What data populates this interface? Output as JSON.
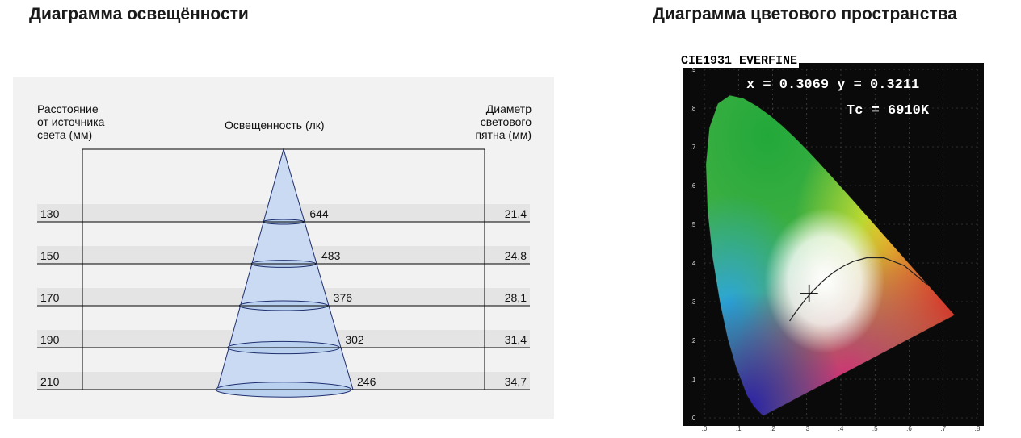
{
  "titles": {
    "left": "Диаграмма освещённости",
    "right": "Диаграмма цветового пространства"
  },
  "illuminance_headers": {
    "distance": [
      "Расстояние",
      "от источника",
      "света (мм)"
    ],
    "illuminance": "Освещенность (лк)",
    "diameter": [
      "Диаметр",
      "светового",
      "пятна (мм)"
    ]
  },
  "chart_data": [
    {
      "type": "table",
      "title": "Диаграмма освещённости",
      "columns": [
        "Расстояние от источника света (мм)",
        "Освещенность (лк)",
        "Диаметр светового пятна (мм)"
      ],
      "rows": [
        {
          "distance": "130",
          "lux": "644",
          "diameter": "21,4"
        },
        {
          "distance": "150",
          "lux": "483",
          "diameter": "24,8"
        },
        {
          "distance": "170",
          "lux": "376",
          "diameter": "28,1"
        },
        {
          "distance": "190",
          "lux": "302",
          "diameter": "31,4"
        },
        {
          "distance": "210",
          "lux": "246",
          "diameter": "34,7"
        }
      ],
      "colors": {
        "cone_fill": "#c9daf2",
        "cone_stroke": "#1f2f6e",
        "row_band": "#e4e4e4"
      }
    },
    {
      "type": "scatter",
      "title": "Диаграмма цветового пространства",
      "label": "CIE1931 EVERFINE",
      "point": {
        "x": 0.3069,
        "y": 0.3211
      },
      "readout": {
        "xy": "x = 0.3069 y = 0.3211",
        "tc": "Tc = 6910K"
      },
      "xlim": [
        0,
        0.8
      ],
      "ylim": [
        0,
        0.9
      ],
      "x_ticks": [
        ".0",
        ".1",
        ".2",
        ".3",
        ".4",
        ".5",
        ".6",
        ".7",
        ".8"
      ],
      "y_ticks": [
        ".0",
        ".1",
        ".2",
        ".3",
        ".4",
        ".5",
        ".6",
        ".7",
        ".8",
        ".9"
      ],
      "colors": {
        "background": "#0a0a0a",
        "axis": "#dddddd"
      }
    }
  ]
}
